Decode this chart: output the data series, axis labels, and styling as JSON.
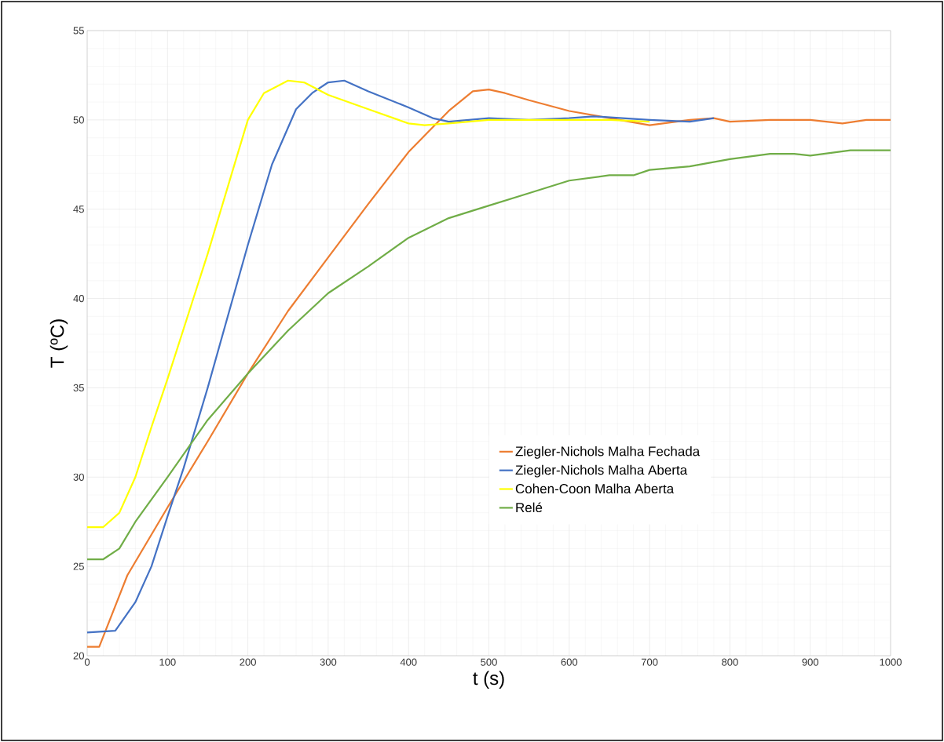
{
  "chart_data": {
    "type": "line",
    "xlabel": "t (s)",
    "ylabel": "T (ºC)",
    "xlim": [
      0,
      1000
    ],
    "ylim": [
      20,
      55
    ],
    "xticks": [
      0,
      100,
      200,
      300,
      400,
      500,
      600,
      700,
      800,
      900,
      1000
    ],
    "yticks": [
      20,
      25,
      30,
      35,
      40,
      45,
      50,
      55
    ],
    "grid": true,
    "legend": "right",
    "marker": "none",
    "line_style": "solid",
    "series": [
      {
        "name": "Ziegler-Nichols Malha Fechada",
        "color": "#ed7d31",
        "x": [
          0,
          15,
          50,
          100,
          150,
          200,
          250,
          300,
          350,
          400,
          450,
          480,
          500,
          520,
          550,
          600,
          650,
          700,
          750,
          780,
          800,
          850,
          900,
          940,
          970,
          1000
        ],
        "values": [
          20.5,
          20.5,
          24.5,
          28.3,
          32,
          35.8,
          39.3,
          42.3,
          45.3,
          48.2,
          50.5,
          51.6,
          51.7,
          51.5,
          51.1,
          50.5,
          50.1,
          49.7,
          50.0,
          50.1,
          49.9,
          50.0,
          50.0,
          49.8,
          50.0,
          50.0
        ]
      },
      {
        "name": "Ziegler-Nichols Malha Aberta",
        "color": "#4472c4",
        "x": [
          0,
          35,
          60,
          80,
          100,
          120,
          150,
          200,
          230,
          260,
          280,
          300,
          320,
          350,
          400,
          430,
          450,
          500,
          550,
          600,
          630,
          700,
          750,
          780
        ],
        "values": [
          21.3,
          21.4,
          23,
          25,
          27.8,
          30.5,
          35,
          43,
          47.5,
          50.6,
          51.5,
          52.1,
          52.2,
          51.6,
          50.7,
          50.1,
          49.9,
          50.1,
          50.0,
          50.1,
          50.2,
          50.0,
          49.9,
          50.1
        ]
      },
      {
        "name": "Cohen-Coon Malha Aberta",
        "color": "#ffff00",
        "x": [
          0,
          20,
          40,
          60,
          80,
          100,
          150,
          180,
          200,
          220,
          250,
          270,
          300,
          350,
          400,
          420,
          450,
          500,
          600,
          650,
          700
        ],
        "values": [
          27.2,
          27.2,
          28,
          30,
          32.8,
          35.5,
          42.5,
          47,
          50,
          51.5,
          52.2,
          52.1,
          51.4,
          50.6,
          49.8,
          49.7,
          49.8,
          50.0,
          50.0,
          50.0,
          49.9
        ]
      },
      {
        "name": "Relé",
        "color": "#70ad47",
        "x": [
          0,
          20,
          40,
          60,
          100,
          150,
          200,
          250,
          300,
          350,
          400,
          450,
          500,
          550,
          600,
          650,
          680,
          700,
          750,
          800,
          850,
          880,
          900,
          950,
          1000
        ],
        "values": [
          25.4,
          25.4,
          26,
          27.5,
          30,
          33.2,
          35.8,
          38.2,
          40.3,
          41.8,
          43.4,
          44.5,
          45.2,
          45.9,
          46.6,
          46.9,
          46.9,
          47.2,
          47.4,
          47.8,
          48.1,
          48.1,
          48.0,
          48.3,
          48.3
        ]
      }
    ]
  }
}
